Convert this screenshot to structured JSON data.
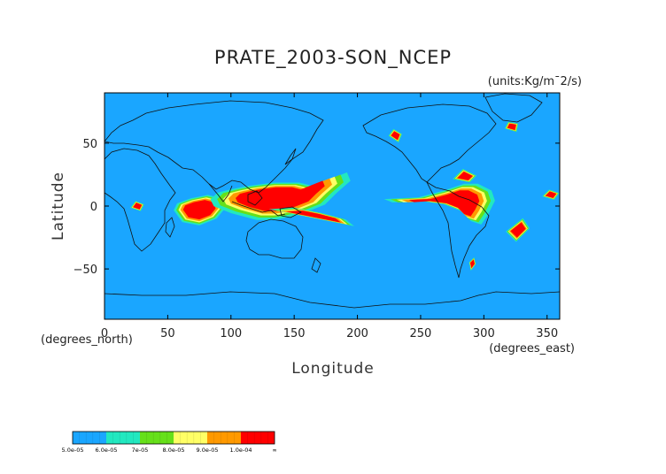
{
  "chart_data": {
    "type": "heatmap",
    "title": "PRATE_2003-SON_NCEP",
    "units_label": "(units:Kg/m¯2/s)",
    "xlabel": "Longitude",
    "ylabel": "Latitude",
    "x_unit_label": "(degrees_east)",
    "y_unit_label": "(degrees_north)",
    "xlim": [
      0,
      360
    ],
    "ylim": [
      -90,
      90
    ],
    "x_ticks": [
      0,
      50,
      100,
      150,
      200,
      250,
      300,
      350
    ],
    "y_ticks": [
      50,
      0,
      -50
    ],
    "x_tick_labels": [
      "0",
      "50",
      "100",
      "150",
      "200",
      "250",
      "300",
      "350"
    ],
    "y_tick_labels": [
      "50",
      "0",
      "−50"
    ],
    "background_color": "#1aa6ff",
    "colorbar": {
      "labels": [
        "5.0e-05",
        "6.0e-05",
        "7e-05",
        "8.0e-05",
        "9.0e-05",
        "1.0e-04",
        "∞"
      ],
      "colors": [
        "#1aa6ff",
        "#22e8c0",
        "#66e01a",
        "#ffff66",
        "#ff9900",
        "#ff0000"
      ]
    },
    "regions": [
      {
        "level": 5,
        "points": [
          [
            60,
            -3
          ],
          [
            65,
            -10
          ],
          [
            75,
            -12
          ],
          [
            85,
            -8
          ],
          [
            90,
            -2
          ],
          [
            88,
            4
          ],
          [
            80,
            6
          ],
          [
            70,
            4
          ],
          [
            62,
            1
          ]
        ]
      },
      {
        "level": 5,
        "points": [
          [
            100,
            2
          ],
          [
            110,
            -2
          ],
          [
            125,
            -6
          ],
          [
            135,
            -6
          ],
          [
            150,
            -3
          ],
          [
            165,
            3
          ],
          [
            172,
            10
          ],
          [
            180,
            17
          ],
          [
            178,
            22
          ],
          [
            168,
            18
          ],
          [
            158,
            14
          ],
          [
            150,
            16
          ],
          [
            135,
            16
          ],
          [
            120,
            14
          ],
          [
            110,
            12
          ],
          [
            102,
            10
          ],
          [
            98,
            6
          ]
        ]
      },
      {
        "level": 5,
        "points": [
          [
            140,
            -4
          ],
          [
            160,
            -8
          ],
          [
            180,
            -12
          ],
          [
            190,
            -14
          ],
          [
            185,
            -10
          ],
          [
            170,
            -6
          ],
          [
            155,
            -3
          ]
        ]
      },
      {
        "level": 5,
        "points": [
          [
            235,
            5
          ],
          [
            255,
            6
          ],
          [
            270,
            10
          ],
          [
            282,
            14
          ],
          [
            290,
            14
          ],
          [
            298,
            10
          ],
          [
            300,
            4
          ],
          [
            296,
            -4
          ],
          [
            292,
            -10
          ],
          [
            286,
            -8
          ],
          [
            280,
            -2
          ],
          [
            270,
            2
          ],
          [
            255,
            4
          ],
          [
            240,
            3
          ]
        ]
      },
      {
        "level": 5,
        "points": [
          [
            320,
            -20
          ],
          [
            330,
            -12
          ],
          [
            334,
            -18
          ],
          [
            326,
            -26
          ]
        ]
      },
      {
        "level": 5,
        "points": [
          [
            348,
            8
          ],
          [
            355,
            6
          ],
          [
            358,
            10
          ],
          [
            352,
            12
          ]
        ]
      },
      {
        "level": 5,
        "points": [
          [
            22,
            -1
          ],
          [
            28,
            -3
          ],
          [
            30,
            1
          ],
          [
            25,
            3
          ]
        ]
      },
      {
        "level": 5,
        "points": [
          [
            318,
            62
          ],
          [
            325,
            60
          ],
          [
            326,
            65
          ],
          [
            320,
            66
          ]
        ]
      },
      {
        "level": 5,
        "points": [
          [
            226,
            56
          ],
          [
            232,
            52
          ],
          [
            234,
            57
          ],
          [
            229,
            60
          ]
        ]
      },
      {
        "level": 5,
        "points": [
          [
            290,
            -50
          ],
          [
            293,
            -46
          ],
          [
            292,
            -42
          ],
          [
            289,
            -45
          ]
        ]
      },
      {
        "level": 5,
        "points": [
          [
            278,
            22
          ],
          [
            288,
            20
          ],
          [
            292,
            24
          ],
          [
            284,
            28
          ]
        ]
      }
    ]
  }
}
